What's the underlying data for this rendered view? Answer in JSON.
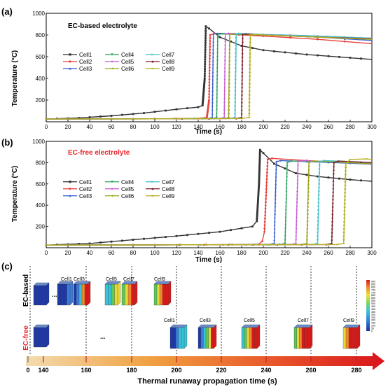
{
  "chart_data": [
    {
      "panel_label": "(a)",
      "type": "line",
      "title": "EC-based electrolyte",
      "title_color": "#000000",
      "xlabel": "Time (s)",
      "ylabel": "Temperature (°C)",
      "xlim": [
        0,
        300
      ],
      "ylim": [
        0,
        1000
      ],
      "xticks": [
        0,
        20,
        40,
        60,
        80,
        100,
        120,
        140,
        160,
        180,
        200,
        220,
        240,
        260,
        280,
        300
      ],
      "yticks": [
        200,
        400,
        600,
        800,
        1000
      ],
      "legend": [
        "Cell1",
        "Cell2",
        "Cell3",
        "Cell4",
        "Cell5",
        "Cell6",
        "Cell7",
        "Cell8",
        "Cell9"
      ],
      "legend_position": "left, upper-middle (3 columns)",
      "series": [
        {
          "name": "Cell1",
          "color": "#333333",
          "x": [
            0,
            30,
            60,
            90,
            120,
            140,
            144,
            146,
            147,
            150,
            160,
            180,
            200,
            240,
            280,
            300
          ],
          "y": [
            25,
            35,
            55,
            80,
            115,
            135,
            150,
            400,
            880,
            860,
            780,
            700,
            660,
            620,
            590,
            575
          ]
        },
        {
          "name": "Cell2",
          "color": "#e8413c",
          "x": [
            0,
            100,
            140,
            148,
            150,
            151,
            155,
            200,
            250,
            300
          ],
          "y": [
            25,
            27,
            30,
            40,
            200,
            800,
            815,
            790,
            760,
            720
          ]
        },
        {
          "name": "Cell3",
          "color": "#3a5fcd",
          "x": [
            0,
            100,
            150,
            153,
            154,
            158,
            200,
            250,
            300
          ],
          "y": [
            25,
            27,
            30,
            40,
            810,
            815,
            800,
            780,
            750
          ]
        },
        {
          "name": "Cell4",
          "color": "#2ca25f",
          "x": [
            0,
            100,
            155,
            157,
            158,
            162,
            200,
            250,
            300
          ],
          "y": [
            25,
            27,
            30,
            40,
            805,
            810,
            800,
            785,
            760
          ]
        },
        {
          "name": "Cell5",
          "color": "#c55fd0",
          "x": [
            0,
            100,
            160,
            164,
            165,
            168,
            200,
            250,
            300
          ],
          "y": [
            25,
            27,
            30,
            40,
            810,
            815,
            805,
            790,
            770
          ]
        },
        {
          "name": "Cell6",
          "color": "#9aa51a",
          "x": [
            0,
            100,
            165,
            168,
            169,
            172,
            200,
            250,
            300
          ],
          "y": [
            25,
            27,
            30,
            40,
            805,
            810,
            800,
            780,
            760
          ]
        },
        {
          "name": "Cell7",
          "color": "#46c1c9",
          "x": [
            0,
            100,
            170,
            174,
            175,
            178,
            200,
            250,
            300
          ],
          "y": [
            25,
            27,
            30,
            40,
            810,
            815,
            805,
            790,
            770
          ]
        },
        {
          "name": "Cell8",
          "color": "#7a2430",
          "x": [
            0,
            100,
            175,
            180,
            181,
            184,
            200,
            250,
            300
          ],
          "y": [
            25,
            27,
            30,
            40,
            805,
            810,
            800,
            780,
            765
          ]
        },
        {
          "name": "Cell9",
          "color": "#b8b020",
          "x": [
            0,
            100,
            180,
            187,
            188,
            192,
            200,
            250,
            300
          ],
          "y": [
            25,
            27,
            30,
            40,
            800,
            805,
            800,
            780,
            760
          ]
        }
      ]
    },
    {
      "panel_label": "(b)",
      "type": "line",
      "title": "EC-free electrolyte",
      "title_color": "#e8262c",
      "xlabel": "Time (s)",
      "ylabel": "Temperature (°C)",
      "xlim": [
        0,
        300
      ],
      "ylim": [
        0,
        1000
      ],
      "xticks": [
        0,
        20,
        40,
        60,
        80,
        100,
        120,
        140,
        160,
        180,
        200,
        220,
        240,
        260,
        280,
        300
      ],
      "yticks": [
        200,
        400,
        600,
        800,
        1000
      ],
      "legend": [
        "Cell1",
        "Cell2",
        "Cell3",
        "Cell4",
        "Cell5",
        "Cell6",
        "Cell7",
        "Cell8",
        "Cell9"
      ],
      "legend_position": "left, upper-middle (3 columns)",
      "series": [
        {
          "name": "Cell1",
          "color": "#333333",
          "x": [
            0,
            40,
            80,
            120,
            160,
            190,
            194,
            196,
            197,
            200,
            210,
            230,
            250,
            280,
            300
          ],
          "y": [
            25,
            40,
            75,
            110,
            150,
            200,
            250,
            600,
            920,
            890,
            790,
            700,
            670,
            640,
            625
          ]
        },
        {
          "name": "Cell2",
          "color": "#e8413c",
          "x": [
            0,
            100,
            195,
            199,
            201,
            204,
            208,
            240,
            280,
            300
          ],
          "y": [
            25,
            27,
            30,
            60,
            150,
            830,
            840,
            820,
            800,
            790
          ]
        },
        {
          "name": "Cell3",
          "color": "#3a5fcd",
          "x": [
            0,
            100,
            205,
            210,
            212,
            216,
            240,
            280,
            300
          ],
          "y": [
            25,
            27,
            30,
            40,
            810,
            820,
            810,
            795,
            785
          ]
        },
        {
          "name": "Cell4",
          "color": "#2ca25f",
          "x": [
            0,
            100,
            215,
            220,
            222,
            226,
            250,
            280,
            300
          ],
          "y": [
            25,
            27,
            30,
            40,
            800,
            815,
            810,
            800,
            790
          ]
        },
        {
          "name": "Cell5",
          "color": "#c55fd0",
          "x": [
            0,
            100,
            225,
            230,
            232,
            236,
            260,
            280,
            300
          ],
          "y": [
            25,
            27,
            30,
            40,
            810,
            820,
            810,
            800,
            790
          ]
        },
        {
          "name": "Cell6",
          "color": "#9aa51a",
          "x": [
            0,
            100,
            235,
            240,
            242,
            246,
            270,
            290,
            300
          ],
          "y": [
            25,
            27,
            30,
            40,
            800,
            815,
            805,
            795,
            790
          ]
        },
        {
          "name": "Cell7",
          "color": "#46c1c9",
          "x": [
            0,
            100,
            245,
            250,
            252,
            256,
            280,
            300
          ],
          "y": [
            25,
            27,
            30,
            40,
            810,
            820,
            810,
            800
          ]
        },
        {
          "name": "Cell8",
          "color": "#7a2430",
          "x": [
            0,
            100,
            258,
            263,
            265,
            269,
            290,
            300
          ],
          "y": [
            25,
            27,
            30,
            40,
            800,
            815,
            805,
            800
          ]
        },
        {
          "name": "Cell9",
          "color": "#b8b020",
          "x": [
            0,
            100,
            268,
            274,
            276,
            280,
            295,
            300
          ],
          "y": [
            25,
            27,
            30,
            40,
            790,
            830,
            835,
            830
          ]
        }
      ]
    }
  ],
  "panel_c": {
    "panel_label": "(c)",
    "row_labels": [
      {
        "text": "EC-based",
        "color": "#000000"
      },
      {
        "text": "EC-free",
        "color": "#e8262c"
      }
    ],
    "top_labels": [
      "Cell1",
      "Cell3",
      "Cell5",
      "Cell7",
      "Cell9"
    ],
    "bottom_labels": [
      "Cell1",
      "Cell3",
      "Cell5",
      "Cell7",
      "Cell9"
    ],
    "ellipsis": "...",
    "axis_ticks": [
      "0",
      "140",
      "160",
      "180",
      "200",
      "220",
      "240",
      "260",
      "280"
    ],
    "axis_label": "Thermal runaway propagation time (s)",
    "colorbar_ticks": [
      "900",
      "850",
      "800",
      "750",
      "700",
      "650",
      "600",
      "550",
      "500",
      "450",
      "400",
      "350",
      "300",
      "250",
      "200",
      "150",
      "100",
      "50",
      "0"
    ]
  }
}
